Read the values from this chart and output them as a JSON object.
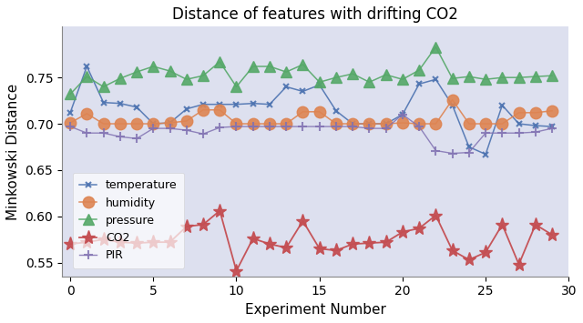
{
  "title": "Distance of features with drifting CO2",
  "xlabel": "Experiment Number",
  "ylabel": "Minkowski Distance",
  "background_color": "#dde0ef",
  "fig_background": "#ffffff",
  "ylim": [
    0.535,
    0.805
  ],
  "xlim": [
    -0.5,
    29.5
  ],
  "yticks": [
    0.55,
    0.6,
    0.65,
    0.7,
    0.75
  ],
  "xticks": [
    0,
    5,
    10,
    15,
    20,
    25,
    30
  ],
  "temperature": [
    0.712,
    0.762,
    0.723,
    0.722,
    0.718,
    0.7,
    0.701,
    0.716,
    0.721,
    0.721,
    0.721,
    0.722,
    0.721,
    0.74,
    0.735,
    0.742,
    0.714,
    0.7,
    0.7,
    0.7,
    0.71,
    0.743,
    0.748,
    0.72,
    0.675,
    0.667,
    0.72,
    0.7,
    0.698,
    0.697
  ],
  "humidity": [
    0.701,
    0.711,
    0.7,
    0.7,
    0.7,
    0.7,
    0.701,
    0.703,
    0.715,
    0.715,
    0.7,
    0.7,
    0.7,
    0.7,
    0.713,
    0.713,
    0.7,
    0.7,
    0.7,
    0.7,
    0.701,
    0.7,
    0.7,
    0.726,
    0.7,
    0.7,
    0.7,
    0.712,
    0.712,
    0.714
  ],
  "pressure": [
    0.732,
    0.751,
    0.74,
    0.749,
    0.756,
    0.762,
    0.757,
    0.748,
    0.752,
    0.767,
    0.74,
    0.762,
    0.762,
    0.756,
    0.764,
    0.745,
    0.75,
    0.754,
    0.745,
    0.753,
    0.748,
    0.758,
    0.783,
    0.749,
    0.751,
    0.748,
    0.75,
    0.75,
    0.751,
    0.752
  ],
  "co2": [
    0.57,
    0.572,
    0.575,
    0.572,
    0.571,
    0.572,
    0.572,
    0.589,
    0.591,
    0.606,
    0.541,
    0.576,
    0.57,
    0.566,
    0.595,
    0.565,
    0.563,
    0.57,
    0.571,
    0.572,
    0.583,
    0.587,
    0.601,
    0.563,
    0.553,
    0.561,
    0.591,
    0.548,
    0.591,
    0.58
  ],
  "pir": [
    0.697,
    0.69,
    0.69,
    0.686,
    0.684,
    0.695,
    0.695,
    0.693,
    0.689,
    0.696,
    0.697,
    0.697,
    0.697,
    0.697,
    0.697,
    0.697,
    0.697,
    0.697,
    0.695,
    0.695,
    0.71,
    0.697,
    0.671,
    0.668,
    0.669,
    0.69,
    0.69,
    0.69,
    0.691,
    0.695
  ],
  "temp_color": "#4c72b0",
  "humidity_color": "#dd8452",
  "pressure_color": "#55a868",
  "co2_color": "#c44e52",
  "pir_color": "#8172b2"
}
